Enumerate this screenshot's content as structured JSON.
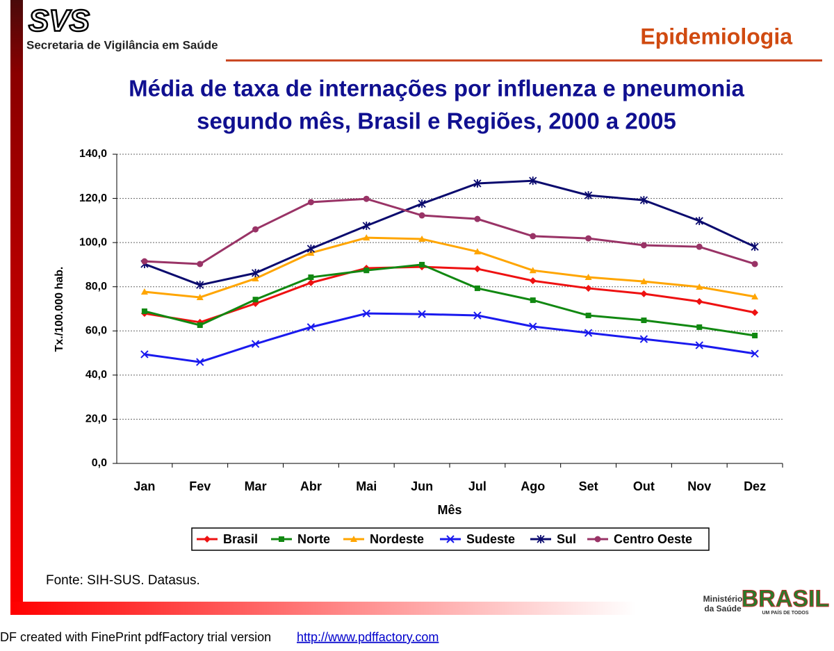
{
  "header": {
    "logo": "SVS",
    "org": "Secretaria de Vigilância em Saúde",
    "section": "Epidemiologia"
  },
  "chart_data": {
    "type": "line",
    "title": [
      "Média de taxa de internações por influenza e pneumonia",
      "segundo mês, Brasil e Regiões, 2000 a 2005"
    ],
    "x_label": "Mês",
    "y_label": "Tx./100.000 hab.",
    "categories": [
      "Jan",
      "Fev",
      "Mar",
      "Abr",
      "Mai",
      "Jun",
      "Jul",
      "Ago",
      "Set",
      "Out",
      "Nov",
      "Dez"
    ],
    "ylim": [
      0,
      140
    ],
    "yticks": [
      {
        "value": 0,
        "label": "0,0"
      },
      {
        "value": 20,
        "label": "20,0"
      },
      {
        "value": 40,
        "label": "40,0"
      },
      {
        "value": 60,
        "label": "60,0"
      },
      {
        "value": 80,
        "label": "80,0"
      },
      {
        "value": 100,
        "label": "100,0"
      },
      {
        "value": 120,
        "label": "120,0"
      },
      {
        "value": 140,
        "label": "140,0"
      }
    ],
    "grid": true,
    "legend": "bottom",
    "series": [
      {
        "name": "Brasil",
        "color": "#ee1111",
        "marker": "diamond",
        "values": [
          67.9,
          63.9,
          72.4,
          81.8,
          88.4,
          89.0,
          88.1,
          82.7,
          79.3,
          76.8,
          73.3,
          68.3
        ]
      },
      {
        "name": "Norte",
        "color": "#118811",
        "marker": "square",
        "values": [
          68.9,
          62.6,
          74.2,
          84.3,
          87.4,
          90.0,
          79.3,
          73.9,
          67.0,
          64.8,
          61.7,
          57.9
        ]
      },
      {
        "name": "Nordeste",
        "color": "#ffa500",
        "marker": "triangle",
        "values": [
          77.7,
          75.2,
          83.7,
          95.3,
          102.2,
          101.6,
          95.9,
          87.4,
          84.3,
          82.4,
          79.9,
          75.5
        ]
      },
      {
        "name": "Sudeste",
        "color": "#1a1aee",
        "marker": "x",
        "values": [
          49.4,
          45.9,
          54.1,
          61.7,
          67.9,
          67.6,
          67.0,
          62.0,
          59.1,
          56.3,
          53.5,
          49.7
        ]
      },
      {
        "name": "Sul",
        "color": "#0a0a6e",
        "marker": "star",
        "values": [
          90.3,
          80.8,
          86.2,
          97.2,
          107.6,
          117.6,
          126.8,
          128.0,
          121.4,
          119.2,
          109.8,
          98.1
        ]
      },
      {
        "name": "Centro Oeste",
        "color": "#993366",
        "marker": "circle",
        "values": [
          91.5,
          90.3,
          106.0,
          118.3,
          119.8,
          112.3,
          110.7,
          102.9,
          101.9,
          98.8,
          98.1,
          90.3
        ]
      }
    ]
  },
  "source": "Fonte: SIH-SUS. Datasus.",
  "footer": {
    "ministry": [
      "Ministério",
      "da Saúde"
    ],
    "brand": "BRASIL",
    "tagline": "UM PAÍS DE TODOS",
    "pdf_note": "DF created with FinePrint pdfFactory trial version",
    "url": "http://www.pdffactory.com"
  }
}
